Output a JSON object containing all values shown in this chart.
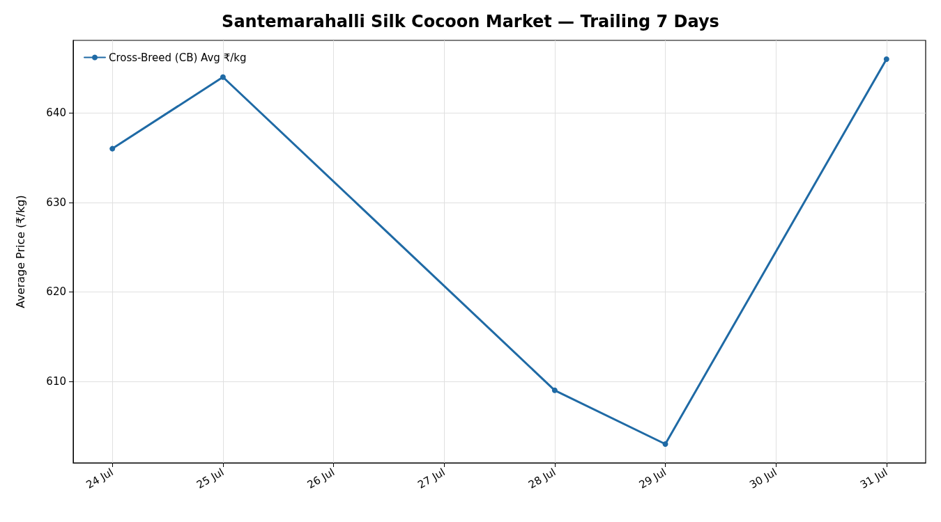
{
  "chart_data": {
    "type": "line",
    "title": "Santemarahalli Silk Cocoon Market — Trailing 7 Days",
    "ylabel": "Average Price (₹/kg)",
    "x": [
      "--07-24",
      "--07-25",
      "--07-28",
      "--07-29",
      "--07-31"
    ],
    "series": [
      {
        "name": "Cross-Breed (CB) Avg ₹/kg",
        "color": "#1f6aa5",
        "values": [
          636,
          644,
          609,
          603,
          646
        ]
      }
    ],
    "xlim": [
      "--07-23T15:30",
      "--07-31T08:30"
    ],
    "xticks": [
      {
        "value": "--07-24",
        "label": "24 Jul"
      },
      {
        "value": "--07-25",
        "label": "25 Jul"
      },
      {
        "value": "--07-26",
        "label": "26 Jul"
      },
      {
        "value": "--07-27",
        "label": "27 Jul"
      },
      {
        "value": "--07-28",
        "label": "28 Jul"
      },
      {
        "value": "--07-29",
        "label": "29 Jul"
      },
      {
        "value": "--07-30",
        "label": "30 Jul"
      },
      {
        "value": "--07-31",
        "label": "31 Jul"
      }
    ],
    "ylim": [
      600.9,
      648.1
    ],
    "yticks": [
      610,
      620,
      630,
      640
    ],
    "grid": true,
    "legend": "top left",
    "marker": "circle",
    "line_style": "solid"
  }
}
